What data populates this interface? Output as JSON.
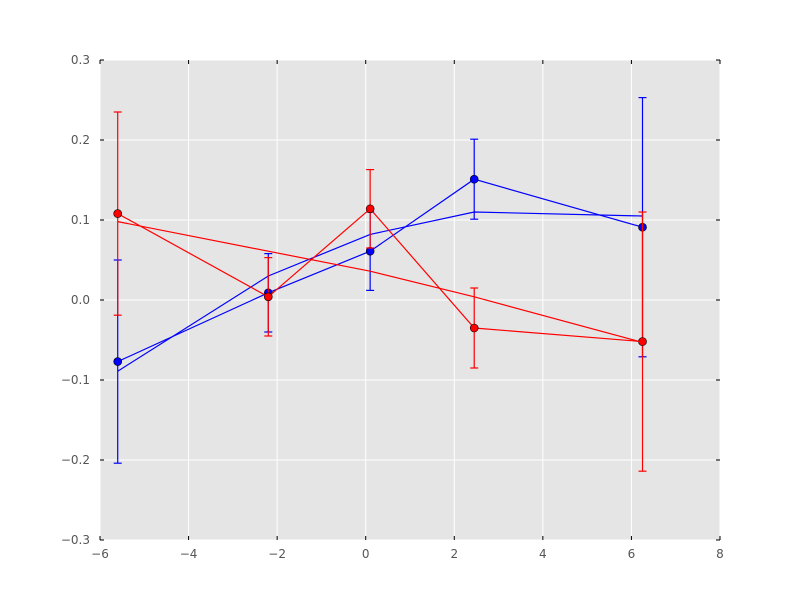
{
  "chart_data": {
    "type": "line",
    "title": "",
    "xlabel": "",
    "ylabel": "",
    "xlim": [
      -6,
      8
    ],
    "ylim": [
      -0.3,
      0.3
    ],
    "grid": true,
    "xticks": [
      -6,
      -4,
      -2,
      0,
      2,
      4,
      6,
      8
    ],
    "yticks": [
      -0.3,
      -0.2,
      -0.1,
      0.0,
      0.1,
      0.2,
      0.3
    ],
    "xtick_labels": [
      "−6",
      "−4",
      "−2",
      "0",
      "2",
      "4",
      "6",
      "8"
    ],
    "ytick_labels": [
      "−0.3",
      "−0.2",
      "−0.1",
      "0.0",
      "0.1",
      "0.2",
      "0.3"
    ],
    "series": [
      {
        "color": "#0000ff",
        "kind": "errorbar",
        "x": [
          -5.6,
          -2.2,
          0.1,
          2.45,
          6.25
        ],
        "y": [
          -0.077,
          0.009,
          0.061,
          0.151,
          0.091
        ],
        "err": [
          0.127,
          0.049,
          0.049,
          0.05,
          0.162
        ]
      },
      {
        "color": "#0000ff",
        "kind": "fit",
        "x": [
          -5.6,
          -2.2,
          0.1,
          2.45,
          6.25
        ],
        "y": [
          -0.089,
          0.03,
          0.082,
          0.11,
          0.105
        ]
      },
      {
        "color": "#ff0000",
        "kind": "errorbar",
        "x": [
          -5.6,
          -2.2,
          0.1,
          2.45,
          6.25
        ],
        "y": [
          0.108,
          0.004,
          0.114,
          -0.035,
          -0.052
        ],
        "err": [
          0.127,
          0.049,
          0.049,
          0.05,
          0.162
        ]
      },
      {
        "color": "#ff0000",
        "kind": "fit",
        "x": [
          -5.6,
          -2.2,
          0.1,
          2.45,
          6.25
        ],
        "y": [
          0.098,
          0.061,
          0.036,
          0.004,
          -0.053
        ]
      }
    ]
  }
}
